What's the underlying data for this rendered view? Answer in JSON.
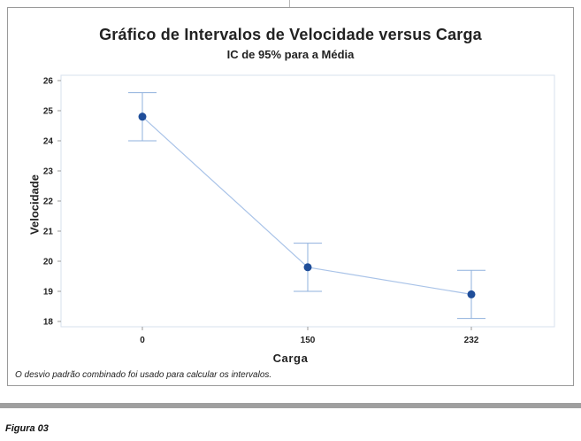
{
  "chart_data": {
    "type": "interval_plot",
    "title": "Gráfico de Intervalos de Velocidade versus Carga",
    "subtitle": "IC de 95% para a Média",
    "xlabel": "Carga",
    "ylabel": "Velocidade",
    "categories": [
      "0",
      "150",
      "232"
    ],
    "mean": [
      24.8,
      19.8,
      18.9
    ],
    "ci_lower": [
      24.0,
      19.0,
      18.1
    ],
    "ci_upper": [
      25.6,
      20.6,
      19.7
    ],
    "ylim": [
      18,
      26
    ],
    "yticks": [
      "18",
      "19",
      "20",
      "21",
      "22",
      "23",
      "24",
      "25",
      "26"
    ],
    "footnote": "O desvio padrão combinado foi usado para calcular os intervalos.",
    "colors": {
      "point": "#1f4e9a",
      "line": "#a9c3e8",
      "whisker": "#8fb1dd",
      "plot_border": "#d7e0ee"
    }
  },
  "caption": "Figura 03"
}
